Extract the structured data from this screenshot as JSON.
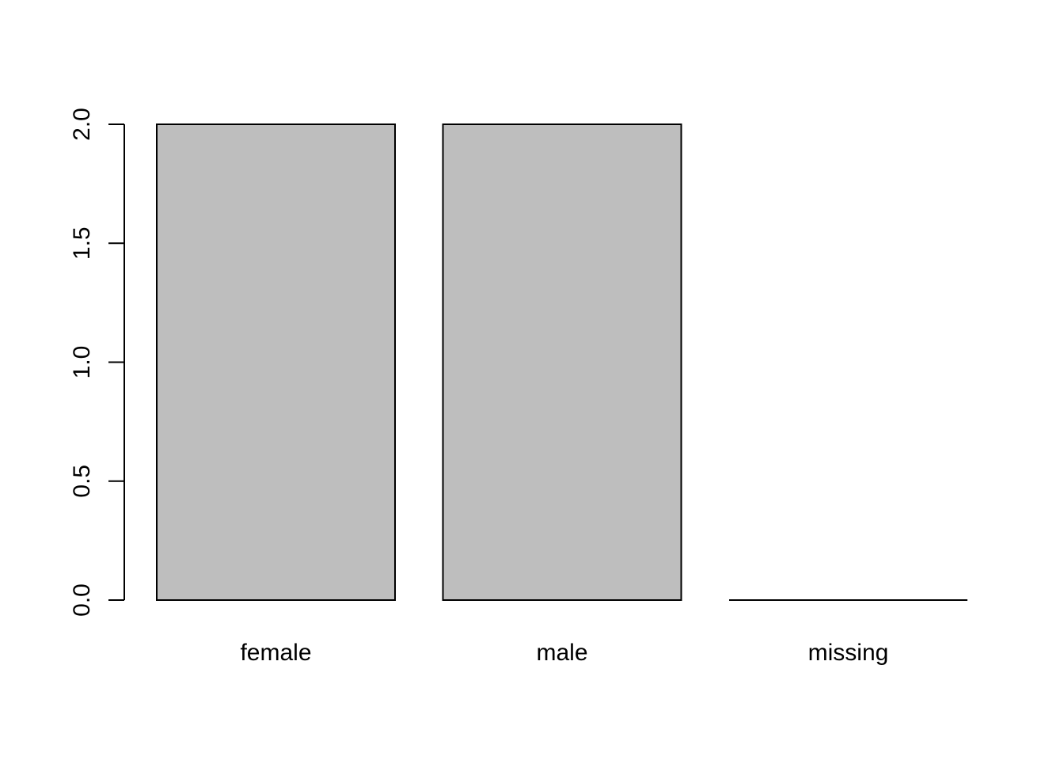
{
  "chart_data": {
    "type": "bar",
    "categories": [
      "female",
      "male",
      "missing"
    ],
    "values": [
      2,
      2,
      0
    ],
    "title": "",
    "xlabel": "",
    "ylabel": "",
    "ylim": [
      0,
      2
    ],
    "yticks": [
      0.0,
      0.5,
      1.0,
      1.5,
      2.0
    ],
    "ytick_labels": [
      "0.0",
      "0.5",
      "1.0",
      "1.5",
      "2.0"
    ],
    "grid": false,
    "colors": {
      "bar_fill": "#bebebe",
      "bar_stroke": "#000000",
      "axis": "#000000",
      "background": "#ffffff"
    }
  }
}
